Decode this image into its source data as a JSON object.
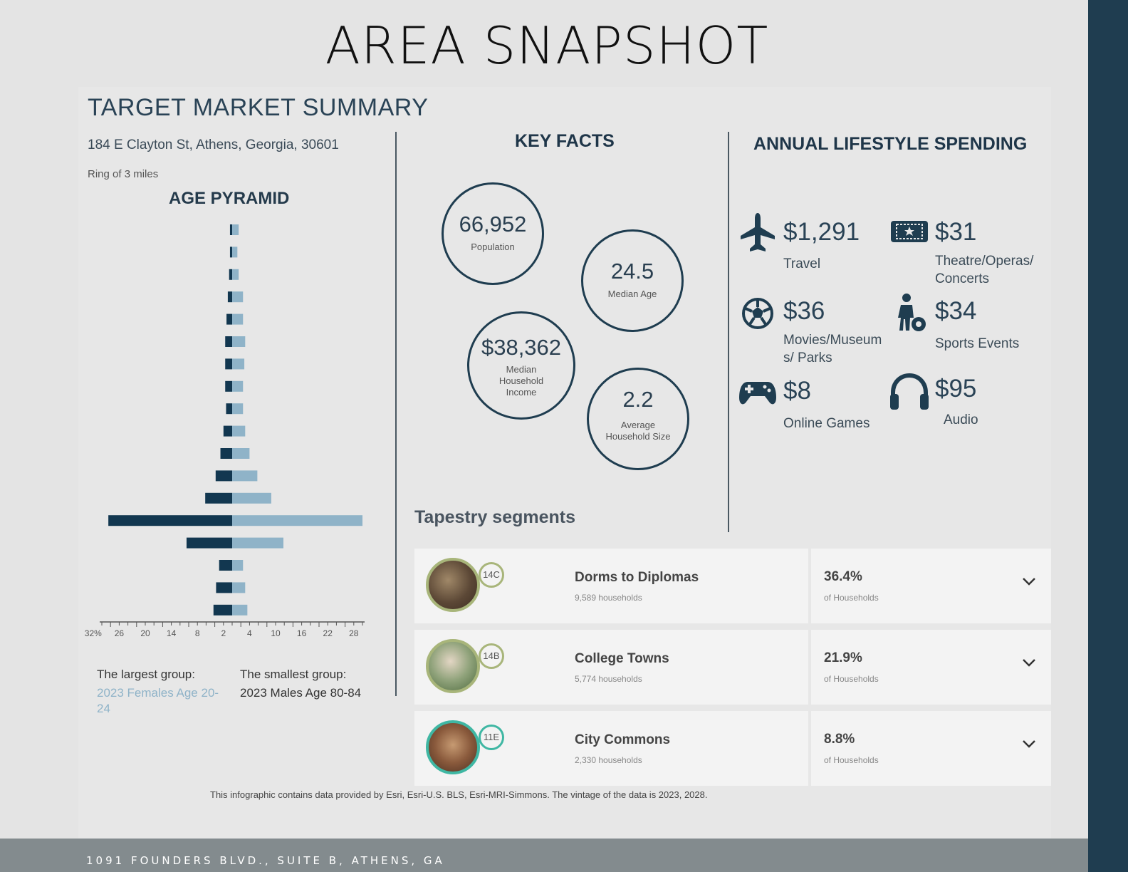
{
  "title": "AREA SNAPSHOT",
  "section_title": "TARGET MARKET SUMMARY",
  "address": "184 E Clayton St, Athens, Georgia, 30601",
  "ring": "Ring of 3 miles",
  "pyramid": {
    "title": "AGE PYRAMID",
    "largest_label": "The largest group:",
    "largest_value": "2023 Females Age 20-24",
    "smallest_label": "The smallest group:",
    "smallest_value": "2023 Males Age 80-84"
  },
  "key_facts": {
    "title": "KEY FACTS",
    "items": [
      {
        "value": "66,952",
        "label": "Population"
      },
      {
        "value": "24.5",
        "label": "Median Age"
      },
      {
        "value": "$38,362",
        "label": "Median Household Income"
      },
      {
        "value": "2.2",
        "label": "Average Household Size"
      }
    ]
  },
  "spending": {
    "title": "ANNUAL LIFESTYLE SPENDING",
    "items": [
      {
        "value": "$1,291",
        "label": "Travel",
        "icon": "airplane-icon"
      },
      {
        "value": "$31",
        "label": "Theatre/Operas/ Concerts",
        "icon": "ticket-icon"
      },
      {
        "value": "$36",
        "label": "Movies/Museum s/ Parks",
        "icon": "soccer-ball-icon"
      },
      {
        "value": "$34",
        "label": "Sports Events",
        "icon": "player-icon"
      },
      {
        "value": "$8",
        "label": "Online Games",
        "icon": "gamepad-icon"
      },
      {
        "value": "$95",
        "label": "Audio",
        "icon": "headphones-icon"
      }
    ]
  },
  "tapestry": {
    "title": "Tapestry segments",
    "segments": [
      {
        "code": "14C",
        "name": "Dorms to Diplomas",
        "households": "9,589 households",
        "pct": "36.4%",
        "of": "of Households",
        "color": "#a8b57a"
      },
      {
        "code": "14B",
        "name": "College Towns",
        "households": "5,774 households",
        "pct": "21.9%",
        "of": "of Households",
        "color": "#a8b57a"
      },
      {
        "code": "11E",
        "name": "City Commons",
        "households": "2,330 households",
        "pct": "8.8%",
        "of": "of Households",
        "color": "#3fb7a3"
      }
    ]
  },
  "credit": "This infographic contains data provided by Esri, Esri-U.S. BLS, Esri-MRI-Simmons. The vintage of the data is 2023, 2028.",
  "footer": "1091 FOUNDERS BLVD., SUITE B, ATHENS, GA",
  "colors": {
    "male": "#123750",
    "female": "#8fb3c8",
    "band": "#1f3d50"
  },
  "chart_data": {
    "type": "bar",
    "orientation": "horizontal-pyramid",
    "tick_labels": [
      "32%",
      "26",
      "20",
      "14",
      "8",
      "2",
      "4",
      "10",
      "16",
      "22",
      "28"
    ],
    "series": [
      {
        "name": "Males",
        "values": [
          0.5,
          0.5,
          0.7,
          1.0,
          1.3,
          1.6,
          1.6,
          1.6,
          1.4,
          2.0,
          2.7,
          3.8,
          6.2,
          28.5,
          10.5,
          3.0,
          3.7,
          4.3
        ]
      },
      {
        "name": "Females",
        "values": [
          1.5,
          1.2,
          1.5,
          2.5,
          2.5,
          3.0,
          2.8,
          2.5,
          2.5,
          3.0,
          4.0,
          5.8,
          9.0,
          30.0,
          11.8,
          2.5,
          3.0,
          3.5
        ]
      }
    ]
  }
}
